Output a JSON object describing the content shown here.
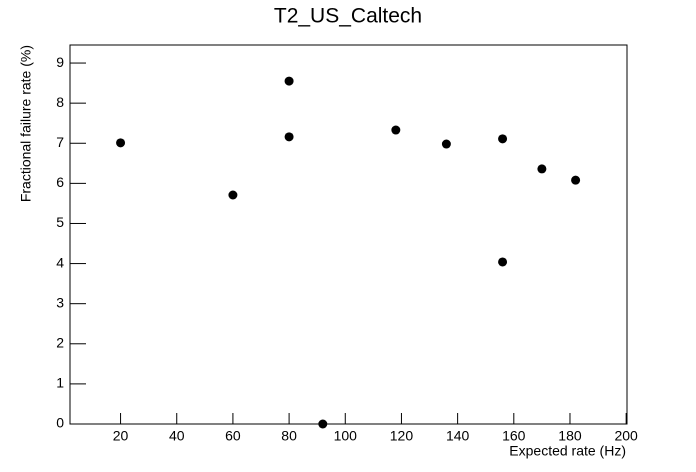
{
  "chart_data": {
    "type": "scatter",
    "title": "T2_US_Caltech",
    "x_label": "Expected rate (Hz)",
    "y_label": "Fractional failure rate (%)",
    "x": [
      20,
      60,
      80,
      80,
      92,
      118,
      136,
      156,
      156,
      170,
      182
    ],
    "y": [
      7.01,
      5.71,
      8.55,
      7.16,
      0,
      7.33,
      6.98,
      7.11,
      4.04,
      6.36,
      6.08
    ],
    "color": "#000000",
    "xlim": [
      2,
      200.3
    ],
    "ylim": [
      0,
      9.45
    ],
    "xticks": [
      20,
      40,
      60,
      80,
      100,
      120,
      140,
      160,
      180,
      200
    ],
    "yticks": [
      0,
      1,
      2,
      3,
      4,
      5,
      6,
      7,
      8,
      9
    ]
  }
}
